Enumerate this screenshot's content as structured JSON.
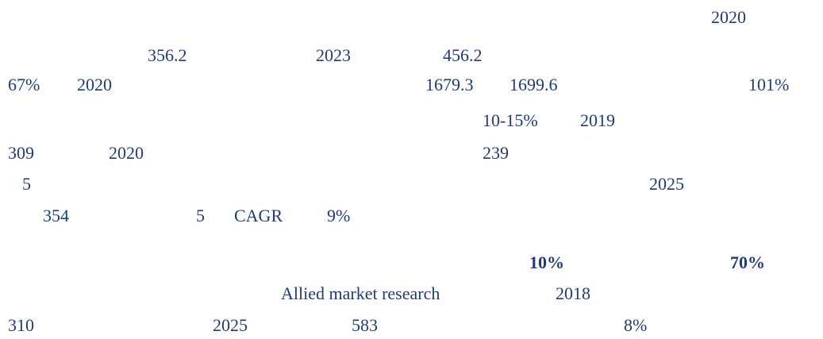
{
  "lines": [
    [
      "2020"
    ],
    [
      "356.2",
      "2023",
      "456.2"
    ],
    [
      "67%",
      "2020",
      "1679.3",
      "1699.6",
      "101%"
    ],
    [
      "10-15%",
      "2019"
    ],
    [
      "309",
      "2020",
      "239"
    ],
    [
      "5",
      "2025"
    ],
    [
      "354",
      "5",
      "CAGR",
      "9%"
    ],
    [
      "10%",
      "70%"
    ],
    [
      "Allied market research",
      "2018"
    ],
    [
      "310",
      "2025",
      "583",
      "8%"
    ]
  ]
}
